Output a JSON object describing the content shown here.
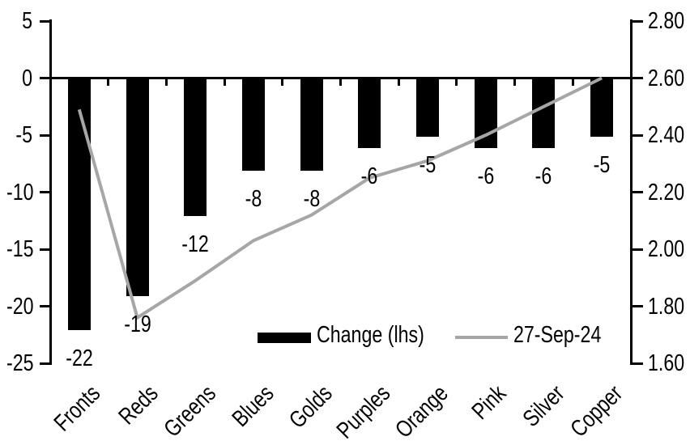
{
  "chart_data": {
    "type": "bar+line",
    "categories": [
      "Fronts",
      "Reds",
      "Greens",
      "Blues",
      "Golds",
      "Purples",
      "Orange",
      "Pink",
      "Silver",
      "Copper"
    ],
    "series": [
      {
        "name": "Change (lhs)",
        "type": "bar",
        "axis": "left",
        "color": "#000000",
        "values": [
          -22,
          -19,
          -12,
          -8,
          -8,
          -6,
          -5,
          -6,
          -6,
          -5
        ],
        "data_labels": [
          "-22",
          "-19",
          "-12",
          "-8",
          "-8",
          "-6",
          "-5",
          "-6",
          "-6",
          "-5"
        ]
      },
      {
        "name": "27-Sep-24",
        "type": "line",
        "axis": "right",
        "color": "#a6a6a6",
        "values": [
          2.49,
          1.76,
          1.89,
          2.03,
          2.12,
          2.25,
          2.31,
          2.4,
          2.5,
          2.6
        ]
      }
    ],
    "left_axis": {
      "min": -25,
      "max": 5,
      "tick_labels": [
        "5",
        "0",
        "-5",
        "-10",
        "-15",
        "-20",
        "-25"
      ]
    },
    "right_axis": {
      "min": 1.6,
      "max": 2.8,
      "tick_labels": [
        "2.80",
        "2.60",
        "2.40",
        "2.20",
        "2.00",
        "1.80",
        "1.60"
      ]
    },
    "title": "",
    "grid": "off",
    "legend_position": "bottom-inside"
  }
}
